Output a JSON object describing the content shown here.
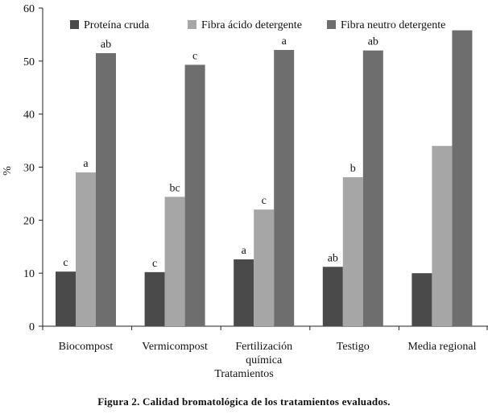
{
  "chart_data": {
    "type": "bar",
    "title": "",
    "xlabel": "Tratamientos",
    "ylabel": "%",
    "ylim": [
      0,
      60
    ],
    "yticks": [
      0,
      10,
      20,
      30,
      40,
      50,
      60
    ],
    "grid": false,
    "legend_position": "top",
    "categories": [
      [
        "Biocompost"
      ],
      [
        "Vermicompost"
      ],
      [
        "Fertilización",
        "química"
      ],
      [
        "Testigo"
      ],
      [
        "Media regional"
      ]
    ],
    "series": [
      {
        "name": "Proteína cruda",
        "color": "#4a4a4a",
        "values": [
          10.3,
          10.2,
          12.6,
          11.2,
          10.0
        ],
        "labels": [
          "c",
          "c",
          "a",
          "ab",
          ""
        ]
      },
      {
        "name": "Fibra ácido detergente",
        "color": "#a6a6a6",
        "values": [
          29.0,
          24.4,
          22.0,
          28.1,
          34.0
        ],
        "labels": [
          "a",
          "bc",
          "c",
          "b",
          ""
        ]
      },
      {
        "name": "Fibra neutro detergente",
        "color": "#6e6e6e",
        "values": [
          51.5,
          49.3,
          52.1,
          52.0,
          55.8
        ],
        "labels": [
          "ab",
          "c",
          "a",
          "ab",
          ""
        ]
      }
    ]
  },
  "caption": "Figura 2. Calidad bromatológica de los tratamientos evaluados."
}
